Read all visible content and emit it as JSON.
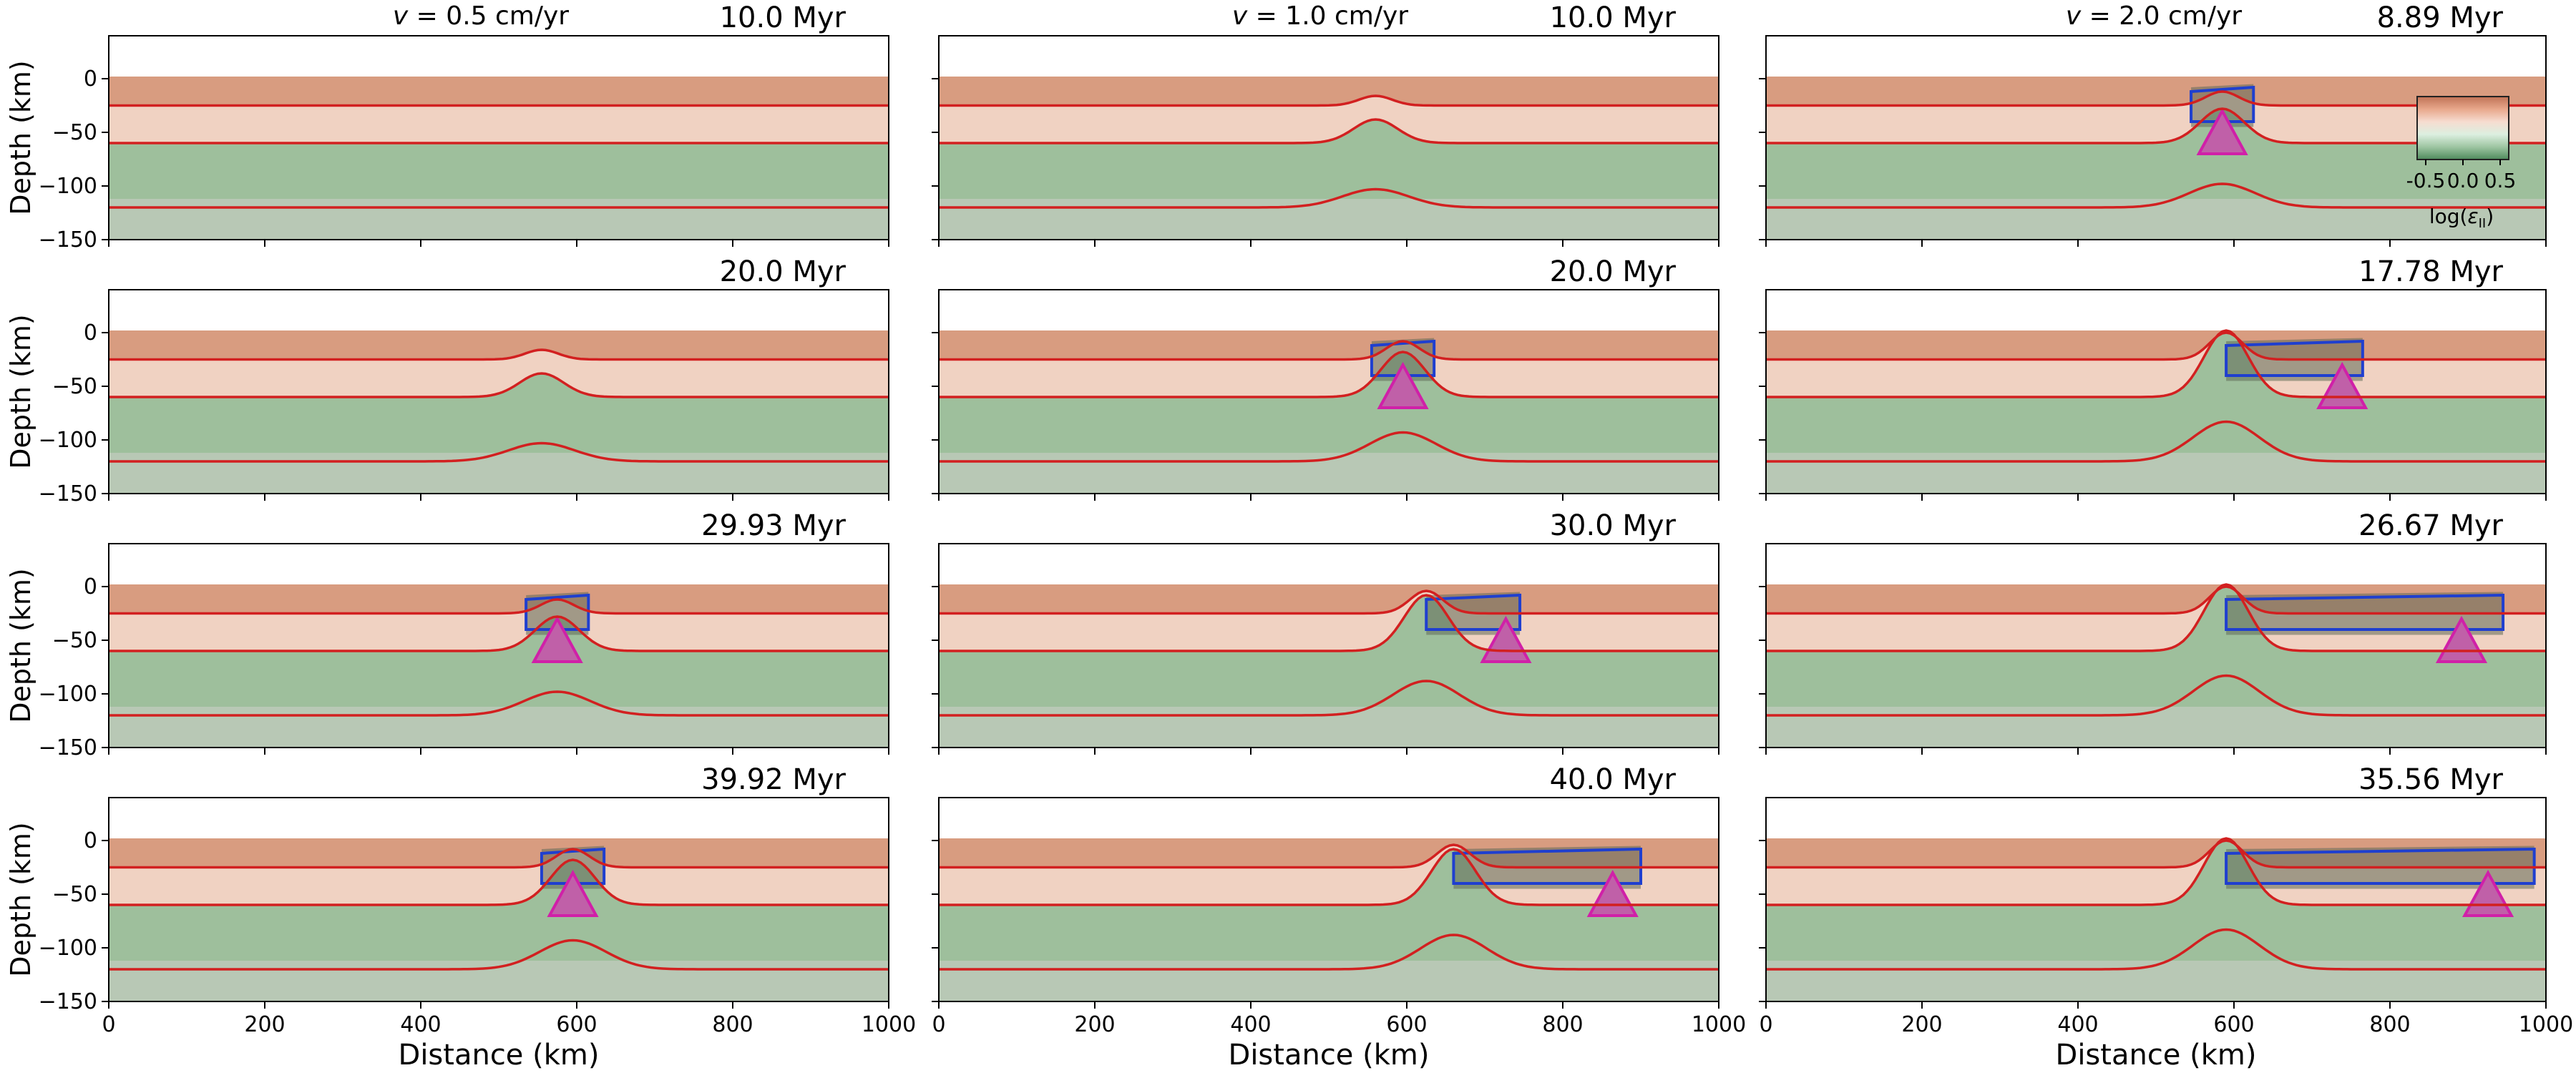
{
  "columns": [
    {
      "velocity": "v = 0.5 cm/yr",
      "velocity_var": "v",
      "velocity_rest": " = 0.5 cm/yr"
    },
    {
      "velocity": "v = 1.0 cm/yr",
      "velocity_var": "v",
      "velocity_rest": " = 1.0 cm/yr"
    },
    {
      "velocity": "v = 2.0 cm/yr",
      "velocity_var": "v",
      "velocity_rest": " = 2.0 cm/yr"
    }
  ],
  "panel_times": [
    [
      "10.0 Myr",
      "10.0 Myr",
      "8.89 Myr"
    ],
    [
      "20.0 Myr",
      "20.0 Myr",
      "17.78 Myr"
    ],
    [
      "29.93 Myr",
      "30.0 Myr",
      "26.67 Myr"
    ],
    [
      "39.92 Myr",
      "40.0 Myr",
      "35.56 Myr"
    ]
  ],
  "colorbar": {
    "label": "log(ε_II)",
    "label_main": "log(",
    "label_eps": "ε",
    "label_sub": "II",
    "label_close": ")",
    "ticks": [
      -0.5,
      0.0,
      0.5
    ],
    "tick_labels": [
      "-0.5",
      "0.0",
      "0.5"
    ],
    "colors": [
      "#4e8a5c",
      "#9ec5a2",
      "#dcefe0",
      "#f6dcd0",
      "#e8a88c",
      "#c07256"
    ]
  },
  "colors": {
    "upper_crust": "#d89c80",
    "lower_crust": "#f0d2c2",
    "mantle": "#9ebf9c",
    "asthenosphere": "#b8c8b5",
    "boundary_line": "#d22020",
    "melt_outline": "#1f3fcf",
    "magma_outline": "#d020a8",
    "magma_fill": "#c060a8",
    "melt_fill": "#606a58"
  },
  "chart_data": {
    "type": "panel-grid",
    "rows": 4,
    "cols": 3,
    "xlabel": "Distance (km)",
    "ylabel": "Depth (km)",
    "xlim": [
      0,
      1000
    ],
    "ylim": [
      -150,
      40
    ],
    "xticks": [
      0,
      200,
      400,
      600,
      800,
      1000
    ],
    "yticks": [
      0,
      -50,
      -100,
      -150
    ],
    "xtick_labels": [
      "0",
      "200",
      "400",
      "600",
      "800",
      "1000"
    ],
    "ytick_labels": [
      "0",
      "−50",
      "−100",
      "−150"
    ],
    "panels": [
      {
        "row": 0,
        "col": 0,
        "time": "10.0 Myr",
        "stage": 0,
        "center": 560,
        "rift_width": 0
      },
      {
        "row": 0,
        "col": 1,
        "time": "10.0 Myr",
        "stage": 1,
        "center": 560,
        "rift_width": 0
      },
      {
        "row": 0,
        "col": 2,
        "time": "8.89 Myr",
        "stage": 2,
        "center": 585,
        "rift_width": 0
      },
      {
        "row": 1,
        "col": 0,
        "time": "20.0 Myr",
        "stage": 1,
        "center": 555,
        "rift_width": 0
      },
      {
        "row": 1,
        "col": 1,
        "time": "20.0 Myr",
        "stage": 3,
        "center": 595,
        "rift_width": 0
      },
      {
        "row": 1,
        "col": 2,
        "time": "17.78 Myr",
        "stage": 5,
        "center": 590,
        "rift_width": 175
      },
      {
        "row": 2,
        "col": 0,
        "time": "29.93 Myr",
        "stage": 2,
        "center": 575,
        "rift_width": 0
      },
      {
        "row": 2,
        "col": 1,
        "time": "30.0 Myr",
        "stage": 4,
        "center": 625,
        "rift_width": 120
      },
      {
        "row": 2,
        "col": 2,
        "time": "26.67 Myr",
        "stage": 5,
        "center": 590,
        "rift_width": 355
      },
      {
        "row": 3,
        "col": 0,
        "time": "39.92 Myr",
        "stage": 3,
        "center": 595,
        "rift_width": 0
      },
      {
        "row": 3,
        "col": 1,
        "time": "40.0 Myr",
        "stage": 4,
        "center": 660,
        "rift_width": 240
      },
      {
        "row": 3,
        "col": 2,
        "time": "35.56 Myr",
        "stage": 5,
        "center": 590,
        "rift_width": 395
      }
    ],
    "boundary_depths_km": {
      "surface": 0,
      "upper_crust_base": -25,
      "lower_crust_base": -60,
      "lithosphere_base": -120
    }
  }
}
